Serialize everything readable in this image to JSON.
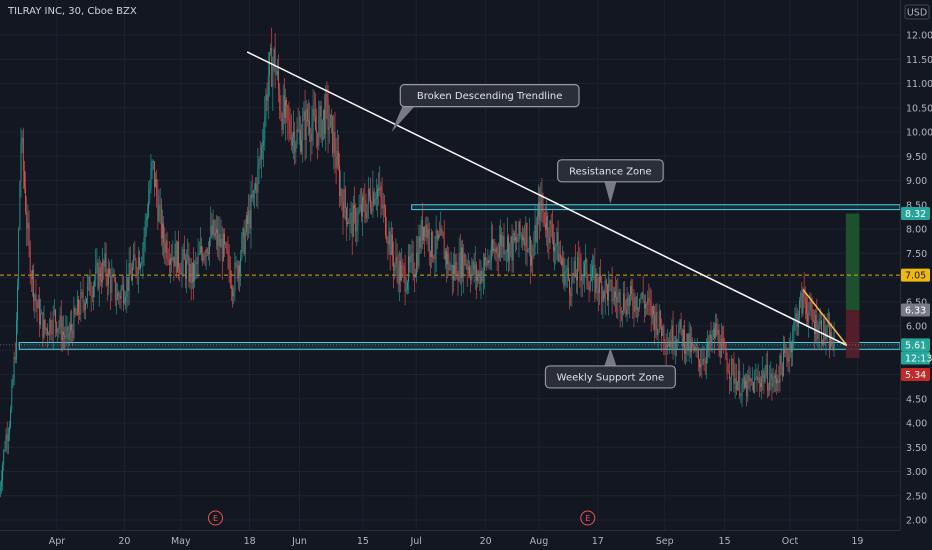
{
  "title": "TILRAY INC, 30, Cboe BZX",
  "currency": "USD",
  "chart_data": {
    "type": "candlestick",
    "y_ticks": [
      "12.00",
      "11.50",
      "11.00",
      "10.50",
      "10.00",
      "9.50",
      "9.00",
      "8.50",
      "8.00",
      "7.50",
      "7.00",
      "6.50",
      "6.00",
      "5.50",
      "5.00",
      "4.50",
      "4.00",
      "3.50",
      "3.00",
      "2.50",
      "2.00"
    ],
    "ylim": [
      1.9,
      12.3
    ],
    "x_ticks": [
      {
        "label": "Apr",
        "x": 0.0
      },
      {
        "label": "20",
        "x": 0.134
      },
      {
        "label": "May",
        "x": 0.246
      },
      {
        "label": "18",
        "x": 0.383
      },
      {
        "label": "Jun",
        "x": 0.482
      },
      {
        "label": "15",
        "x": 0.608
      },
      {
        "label": "Jul",
        "x": 0.714
      },
      {
        "label": "20",
        "x": 0.852
      },
      {
        "label": "Aug",
        "x": 0.958
      },
      {
        "label": "17",
        "x": 1.075
      },
      {
        "label": "Sep",
        "x": 1.208
      },
      {
        "label": "15",
        "x": 1.327
      },
      {
        "label": "Oct",
        "x": 1.457
      },
      {
        "label": "19",
        "x": 1.591
      }
    ],
    "xlim": [
      -0.115,
      1.735
    ],
    "grid": true,
    "price_path": [
      [
        -0.115,
        2.6
      ],
      [
        -0.102,
        3.7
      ],
      [
        -0.092,
        4.2
      ],
      [
        -0.08,
        6.0
      ],
      [
        -0.072,
        9.9
      ],
      [
        -0.064,
        8.8
      ],
      [
        -0.056,
        7.5
      ],
      [
        -0.04,
        6.4
      ],
      [
        -0.025,
        5.9
      ],
      [
        -0.005,
        6.2
      ],
      [
        0.02,
        5.7
      ],
      [
        0.045,
        6.4
      ],
      [
        0.07,
        6.9
      ],
      [
        0.095,
        7.2
      ],
      [
        0.12,
        6.6
      ],
      [
        0.145,
        7.0
      ],
      [
        0.17,
        7.6
      ],
      [
        0.19,
        9.3
      ],
      [
        0.21,
        7.8
      ],
      [
        0.23,
        7.5
      ],
      [
        0.25,
        7.3
      ],
      [
        0.27,
        7.0
      ],
      [
        0.29,
        7.6
      ],
      [
        0.31,
        7.9
      ],
      [
        0.33,
        7.6
      ],
      [
        0.35,
        6.9
      ],
      [
        0.37,
        7.7
      ],
      [
        0.39,
        8.6
      ],
      [
        0.405,
        9.5
      ],
      [
        0.42,
        11.2
      ],
      [
        0.432,
        11.5
      ],
      [
        0.445,
        10.5
      ],
      [
        0.46,
        10.1
      ],
      [
        0.48,
        9.9
      ],
      [
        0.5,
        10.3
      ],
      [
        0.515,
        10.0
      ],
      [
        0.535,
        10.4
      ],
      [
        0.55,
        9.8
      ],
      [
        0.565,
        8.7
      ],
      [
        0.585,
        8.1
      ],
      [
        0.61,
        8.4
      ],
      [
        0.635,
        8.9
      ],
      [
        0.655,
        8.1
      ],
      [
        0.67,
        7.3
      ],
      [
        0.69,
        7.0
      ],
      [
        0.712,
        7.3
      ],
      [
        0.73,
        8.2
      ],
      [
        0.745,
        7.6
      ],
      [
        0.765,
        7.7
      ],
      [
        0.785,
        7.1
      ],
      [
        0.81,
        7.4
      ],
      [
        0.835,
        7.0
      ],
      [
        0.86,
        7.4
      ],
      [
        0.885,
        7.8
      ],
      [
        0.905,
        7.6
      ],
      [
        0.93,
        8.0
      ],
      [
        0.945,
        7.4
      ],
      [
        0.96,
        8.5
      ],
      [
        0.975,
        8.1
      ],
      [
        0.995,
        7.6
      ],
      [
        1.005,
        7.2
      ],
      [
        1.02,
        6.9
      ],
      [
        1.04,
        7.2
      ],
      [
        1.06,
        7.0
      ],
      [
        1.085,
        6.8
      ],
      [
        1.11,
        6.6
      ],
      [
        1.135,
        6.5
      ],
      [
        1.16,
        6.6
      ],
      [
        1.18,
        6.3
      ],
      [
        1.2,
        6.0
      ],
      [
        1.215,
        5.7
      ],
      [
        1.235,
        5.9
      ],
      [
        1.255,
        5.6
      ],
      [
        1.275,
        5.3
      ],
      [
        1.295,
        5.5
      ],
      [
        1.31,
        5.9
      ],
      [
        1.325,
        5.4
      ],
      [
        1.345,
        5.0
      ],
      [
        1.365,
        4.7
      ],
      [
        1.385,
        4.8
      ],
      [
        1.405,
        5.0
      ],
      [
        1.425,
        4.8
      ],
      [
        1.44,
        5.2
      ],
      [
        1.455,
        5.5
      ],
      [
        1.47,
        6.2
      ],
      [
        1.485,
        6.6
      ],
      [
        1.5,
        6.1
      ],
      [
        1.515,
        6.0
      ],
      [
        1.53,
        5.8
      ],
      [
        1.545,
        5.6
      ]
    ],
    "trendlines": [
      {
        "name": "descending",
        "x": [
          0.378,
          1.57
        ],
        "y": [
          11.65,
          5.6
        ],
        "color": "#ffffff"
      },
      {
        "name": "wedge-top",
        "x": [
          1.483,
          1.57
        ],
        "y": [
          6.75,
          5.6
        ],
        "color": "#ffb74d"
      }
    ],
    "zones": [
      {
        "name": "resistance",
        "x": [
          0.705,
          1.735
        ],
        "y": [
          8.4,
          8.5
        ],
        "color": "#4dd0e1"
      },
      {
        "name": "weekly-support",
        "x": [
          -0.075,
          1.735
        ],
        "y": [
          5.52,
          5.66
        ],
        "color": "#4dd0e1"
      }
    ],
    "position": {
      "x": [
        1.568,
        1.595
      ],
      "target": 8.32,
      "entry": 6.33,
      "stop": 5.34,
      "profit_color": "#1e5630",
      "loss_color": "#5a1f2a"
    },
    "hlines": [
      {
        "name": "current",
        "y": 7.05,
        "color": "#f0b90b",
        "style": "dashed"
      },
      {
        "name": "support-dotted",
        "y": 5.61,
        "color": "#9598a1",
        "style": "dotted"
      }
    ],
    "price_labels": [
      {
        "text": "8.32",
        "y": 8.32,
        "bg": "#26a69a",
        "fg": "#ffffff"
      },
      {
        "text": "7.05",
        "y": 7.05,
        "bg": "#f0b90b",
        "fg": "#131722"
      },
      {
        "text": "6.33",
        "y": 6.33,
        "bg": "#787b86",
        "fg": "#ffffff"
      },
      {
        "text": "5.61",
        "y": 5.61,
        "bg": "#26a69a",
        "fg": "#ffffff"
      },
      {
        "text": "12:13",
        "y": 5.34,
        "bg": "#26a69a",
        "fg": "#ffffff",
        "offset": true
      },
      {
        "text": "5.34",
        "y": 5.0,
        "bg": "#c62828",
        "fg": "#ffffff"
      }
    ],
    "annotations": [
      {
        "text": "Broken Descending Trendline",
        "x": 0.86,
        "y": 10.75,
        "pointer": [
          0.665,
          10.0
        ]
      },
      {
        "text": "Resistance Zone",
        "x": 1.1,
        "y": 9.2,
        "pointer": [
          1.1,
          8.52
        ]
      },
      {
        "text": "Weekly Support Zone",
        "x": 1.1,
        "y": 4.95,
        "pointer": [
          1.1,
          5.55
        ]
      }
    ],
    "events": [
      {
        "label": "E",
        "x": 0.315
      },
      {
        "label": "E",
        "x": 1.055
      }
    ]
  }
}
